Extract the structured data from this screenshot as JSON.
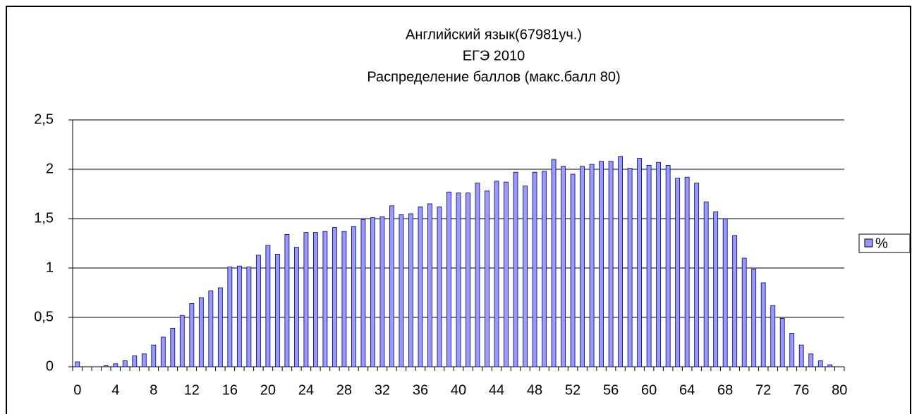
{
  "chart_data": {
    "type": "bar",
    "title": [
      "Английский язык(67981уч.)",
      "ЕГЭ 2010",
      "Распределение баллов (макс.балл 80)"
    ],
    "categories": [
      "0",
      null,
      null,
      null,
      "4",
      null,
      null,
      null,
      "8",
      null,
      null,
      null,
      "12",
      null,
      null,
      null,
      "16",
      null,
      null,
      null,
      "20",
      null,
      null,
      null,
      "24",
      null,
      null,
      null,
      "28",
      null,
      null,
      null,
      "32",
      null,
      null,
      null,
      "36",
      null,
      null,
      null,
      "40",
      null,
      null,
      null,
      "44",
      null,
      null,
      null,
      "48",
      null,
      null,
      null,
      "52",
      null,
      null,
      null,
      "56",
      null,
      null,
      null,
      "60",
      null,
      null,
      null,
      "64",
      null,
      null,
      null,
      "68",
      null,
      null,
      null,
      "72",
      null,
      null,
      null,
      "76",
      null,
      null,
      null,
      "80"
    ],
    "series": [
      {
        "name": "%",
        "color": "#9999ff",
        "values": [
          0.05,
          0,
          0,
          0.01,
          0.03,
          0.06,
          0.11,
          0.13,
          0.22,
          0.3,
          0.39,
          0.52,
          0.64,
          0.7,
          0.77,
          0.8,
          1.01,
          1.02,
          1.01,
          1.13,
          1.23,
          1.14,
          1.34,
          1.21,
          1.36,
          1.36,
          1.37,
          1.41,
          1.37,
          1.42,
          1.49,
          1.51,
          1.52,
          1.63,
          1.54,
          1.55,
          1.62,
          1.65,
          1.62,
          1.77,
          1.76,
          1.76,
          1.86,
          1.78,
          1.88,
          1.87,
          1.97,
          1.83,
          1.97,
          1.98,
          2.1,
          2.03,
          1.95,
          2.03,
          2.05,
          2.08,
          2.08,
          2.13,
          2.01,
          2.11,
          2.04,
          2.07,
          2.04,
          1.91,
          1.92,
          1.86,
          1.67,
          1.57,
          1.5,
          1.33,
          1.1,
          0.99,
          0.85,
          0.62,
          0.49,
          0.34,
          0.22,
          0.13,
          0.06,
          0.02,
          0
        ]
      }
    ],
    "ylim": [
      0,
      2.5
    ],
    "yticks": [
      0,
      {
        "value": 0.5,
        "label": "0,5"
      },
      1,
      {
        "value": 1.5,
        "label": "1,5"
      },
      2,
      {
        "value": 2.5,
        "label": "2,5"
      }
    ],
    "grid": true,
    "legend": "right"
  }
}
